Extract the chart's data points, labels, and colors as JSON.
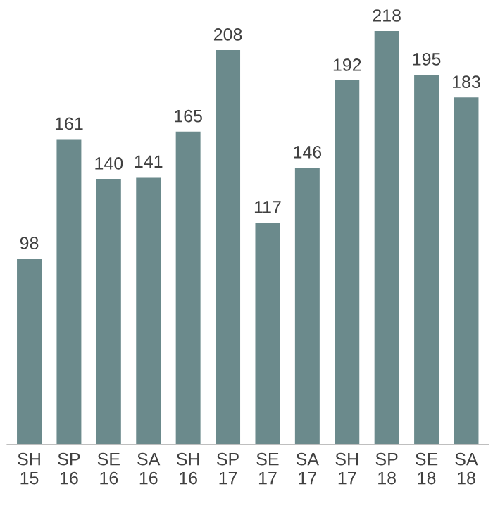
{
  "chart_data": {
    "type": "bar",
    "categories": [
      "SH\n15",
      "SP\n16",
      "SE\n16",
      "SA\n16",
      "SH\n16",
      "SP\n17",
      "SE\n17",
      "SA\n17",
      "SH\n17",
      "SP\n18",
      "SE\n18",
      "SA\n18"
    ],
    "values": [
      98,
      161,
      140,
      141,
      165,
      208,
      117,
      146,
      192,
      218,
      195,
      183
    ],
    "color": "#6b8a8c",
    "data_labels": true,
    "grid": false,
    "legend": false
  }
}
